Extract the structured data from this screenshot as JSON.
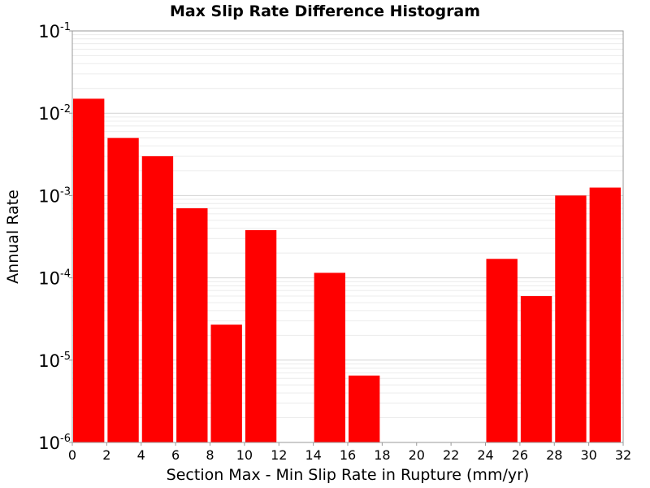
{
  "chart_data": {
    "type": "bar",
    "title": "Max Slip Rate Difference Histogram",
    "xlabel": "Section Max - Min Slip Rate in Rupture (mm/yr)",
    "ylabel": "Annual Rate",
    "xlim": [
      0,
      32
    ],
    "ylim": [
      1e-06,
      0.1
    ],
    "yscale": "log",
    "grid": true,
    "bar_color": "#ff0000",
    "x_ticks": [
      "0",
      "2",
      "4",
      "6",
      "8",
      "10",
      "12",
      "14",
      "16",
      "18",
      "20",
      "22",
      "24",
      "26",
      "28",
      "30",
      "32"
    ],
    "y_ticks": [
      {
        "base": "10",
        "exp": "-1"
      },
      {
        "base": "10",
        "exp": "-2"
      },
      {
        "base": "10",
        "exp": "-3"
      },
      {
        "base": "10",
        "exp": "-4"
      },
      {
        "base": "10",
        "exp": "-5"
      },
      {
        "base": "10",
        "exp": "-6"
      }
    ],
    "bins": [
      {
        "x0": 0,
        "x1": 2,
        "value": 0.015
      },
      {
        "x0": 2,
        "x1": 4,
        "value": 0.005
      },
      {
        "x0": 4,
        "x1": 6,
        "value": 0.003
      },
      {
        "x0": 6,
        "x1": 8,
        "value": 0.0007
      },
      {
        "x0": 8,
        "x1": 10,
        "value": 2.7e-05
      },
      {
        "x0": 10,
        "x1": 12,
        "value": 0.00038
      },
      {
        "x0": 14,
        "x1": 16,
        "value": 0.000115
      },
      {
        "x0": 16,
        "x1": 18,
        "value": 6.5e-06
      },
      {
        "x0": 24,
        "x1": 26,
        "value": 0.00017
      },
      {
        "x0": 26,
        "x1": 28,
        "value": 6e-05
      },
      {
        "x0": 28,
        "x1": 30,
        "value": 0.001
      },
      {
        "x0": 30,
        "x1": 32,
        "value": 0.00125
      }
    ]
  }
}
